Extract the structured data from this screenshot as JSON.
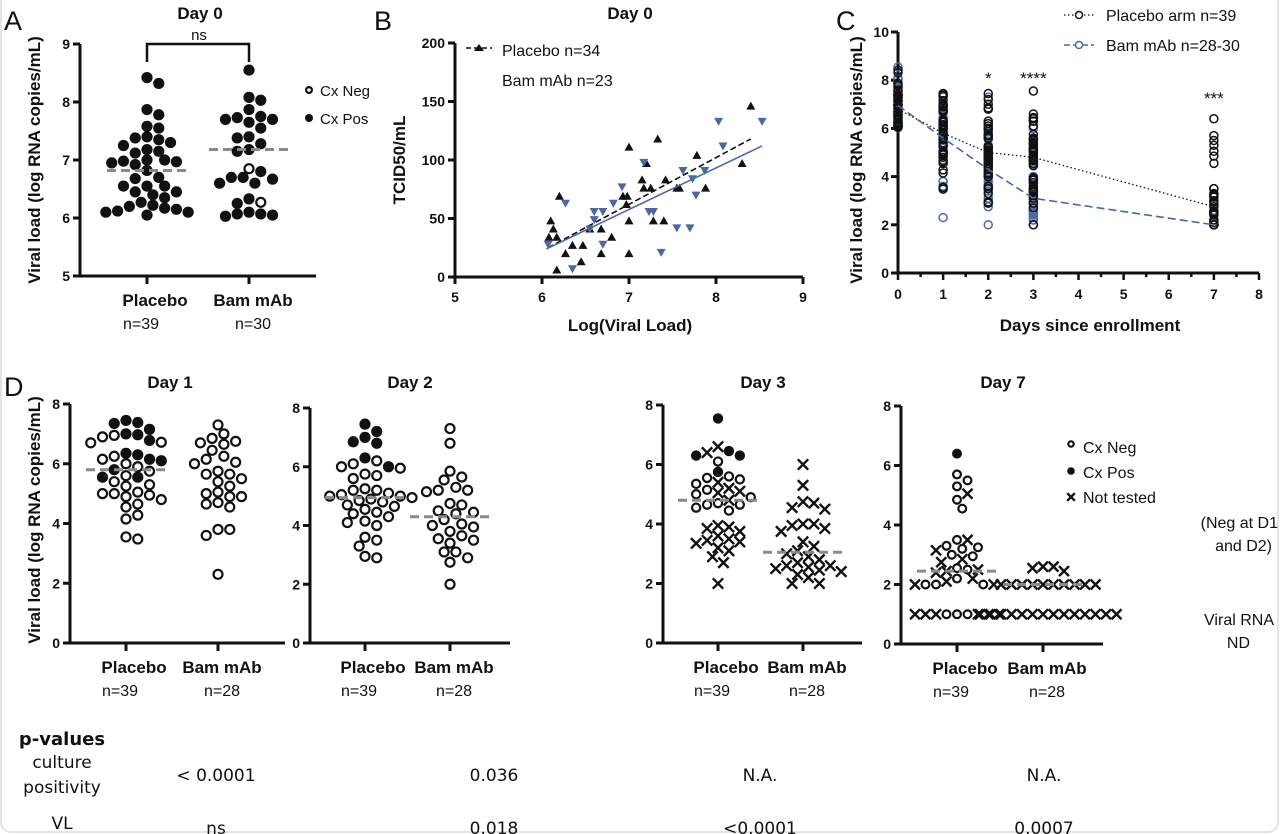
{
  "colors": {
    "ink": "#111111",
    "bam_blue": "#4a67a8",
    "median_gray": "#8a8a8a"
  },
  "chart_data": [
    {
      "panel": "A",
      "type": "scatter",
      "title": "Day 0",
      "ylabel": "Viral load (log RNA copies/mL)",
      "ylim": [
        5,
        9
      ],
      "yticks": [
        5,
        6,
        7,
        8,
        9
      ],
      "significance": "ns",
      "legend": [
        {
          "marker": "open-circle",
          "label": "Cx Neg"
        },
        {
          "marker": "filled-circle",
          "label": "Cx Pos"
        }
      ],
      "groups": [
        {
          "label": "Placebo",
          "n": "n=39",
          "median": 6.82,
          "pos": [
            8.42,
            8.32,
            7.87,
            7.78,
            7.58,
            7.55,
            7.4,
            7.38,
            7.35,
            7.3,
            7.25,
            7.18,
            7.15,
            7.12,
            7.0,
            7.0,
            6.98,
            6.97,
            6.92,
            6.82,
            6.7,
            6.68,
            6.55,
            6.55,
            6.55,
            6.45,
            6.45,
            6.4,
            6.35,
            6.27,
            6.22,
            6.2,
            6.17,
            6.15,
            6.12,
            6.1,
            6.1,
            6.05,
            6.95
          ],
          "neg": [],
          "nt": []
        },
        {
          "label": "Bam mAb",
          "n": "n=30",
          "median": 7.18,
          "pos": [
            8.55,
            8.08,
            8.03,
            7.87,
            7.75,
            7.73,
            7.7,
            7.7,
            7.65,
            7.55,
            7.4,
            7.38,
            7.28,
            7.18,
            7.15,
            6.8,
            6.7,
            6.7,
            6.67,
            6.6,
            6.6,
            6.33,
            6.25,
            6.1,
            6.07,
            6.07,
            6.05,
            6.03
          ],
          "neg": [
            6.85,
            6.27
          ],
          "nt": []
        }
      ]
    },
    {
      "panel": "B",
      "type": "scatter",
      "title": "Day 0",
      "xlabel": "Log(Viral Load)",
      "ylabel": "TCID50/mL",
      "xlim": [
        5,
        9
      ],
      "ylim": [
        0,
        200
      ],
      "xticks": [
        5,
        6,
        7,
        8,
        9
      ],
      "yticks": [
        0,
        50,
        100,
        150,
        200
      ],
      "series": [
        {
          "name": "Placebo n=34",
          "marker": "triangle-up",
          "color": "#111111",
          "fit": [
            [
              6.07,
              25
            ],
            [
              8.4,
              118
            ]
          ],
          "points": [
            [
              6.1,
              48
            ],
            [
              6.13,
              41
            ],
            [
              6.08,
              34
            ],
            [
              6.17,
              34
            ],
            [
              6.2,
              69
            ],
            [
              6.17,
              6
            ],
            [
              6.27,
              20
            ],
            [
              6.35,
              27
            ],
            [
              6.45,
              13
            ],
            [
              6.47,
              27
            ],
            [
              6.55,
              41
            ],
            [
              6.68,
              41
            ],
            [
              6.68,
              20
            ],
            [
              6.8,
              34
            ],
            [
              6.93,
              69
            ],
            [
              6.98,
              69
            ],
            [
              7.0,
              48
            ],
            [
              7.0,
              20
            ],
            [
              7.0,
              111
            ],
            [
              7.15,
              83
            ],
            [
              7.17,
              76
            ],
            [
              7.2,
              97
            ],
            [
              7.25,
              76
            ],
            [
              7.28,
              48
            ],
            [
              7.33,
              118
            ],
            [
              7.4,
              48
            ],
            [
              7.42,
              83
            ],
            [
              7.55,
              76
            ],
            [
              7.58,
              76
            ],
            [
              7.78,
              104
            ],
            [
              7.88,
              76
            ],
            [
              8.3,
              97
            ],
            [
              8.4,
              146
            ],
            [
              6.97,
              62
            ]
          ]
        },
        {
          "name": "Bam mAb n=23",
          "marker": "triangle-down",
          "color": "#4a67a8",
          "fit": [
            [
              6.05,
              24
            ],
            [
              8.53,
              112
            ]
          ],
          "points": [
            [
              6.07,
              28
            ],
            [
              6.27,
              63
            ],
            [
              6.35,
              7
            ],
            [
              6.55,
              41
            ],
            [
              6.6,
              56
            ],
            [
              6.6,
              49
            ],
            [
              6.7,
              56
            ],
            [
              6.7,
              28
            ],
            [
              6.82,
              63
            ],
            [
              6.92,
              77
            ],
            [
              7.17,
              98
            ],
            [
              7.23,
              56
            ],
            [
              7.28,
              56
            ],
            [
              7.37,
              21
            ],
            [
              7.55,
              42
            ],
            [
              7.62,
              91
            ],
            [
              7.7,
              42
            ],
            [
              7.73,
              84
            ],
            [
              7.77,
              70
            ],
            [
              7.87,
              91
            ],
            [
              8.03,
              133
            ],
            [
              8.08,
              112
            ],
            [
              8.53,
              133
            ]
          ]
        }
      ]
    },
    {
      "panel": "C",
      "type": "line",
      "xlabel": "Days since enrollment",
      "ylabel": "Viral load (log RNA copies/mL)",
      "xlim": [
        0,
        8
      ],
      "ylim": [
        0,
        10
      ],
      "xticks": [
        0,
        1,
        2,
        3,
        4,
        5,
        6,
        7,
        8
      ],
      "yticks": [
        0,
        2,
        4,
        6,
        8,
        10
      ],
      "series": [
        {
          "name": "Placebo arm n=39",
          "color": "#111111",
          "style": "dotted",
          "x": [
            0,
            1,
            2,
            3,
            7
          ],
          "y": [
            6.8,
            5.8,
            5.0,
            4.8,
            2.75
          ]
        },
        {
          "name": "Bam mAb n=28-30",
          "color": "#4a67a8",
          "style": "dashed",
          "x": [
            0,
            1,
            2,
            3,
            7
          ],
          "y": [
            6.95,
            5.6,
            4.3,
            3.1,
            2.0
          ]
        }
      ],
      "annotations": [
        {
          "x": 2,
          "label": "*"
        },
        {
          "x": 3,
          "label": "****"
        },
        {
          "x": 7,
          "label": "***"
        }
      ]
    },
    {
      "panel": "D",
      "type": "scatter",
      "title": "Day 1",
      "ylabel": "Viral load (log RNA copies/mL)",
      "ylim": [
        0,
        8
      ],
      "yticks": [
        0,
        2,
        4,
        6,
        8
      ],
      "groups": [
        {
          "label": "Placebo",
          "n": "n=39",
          "median": 5.8,
          "pos": [
            7.45,
            7.38,
            7.35,
            7.15,
            7.0,
            6.97,
            6.78,
            6.35,
            6.3,
            6.15,
            6.1,
            5.8,
            5.55,
            5.55
          ],
          "neg": [
            6.95,
            6.9,
            6.72,
            6.7,
            6.25,
            6.15,
            6.0,
            5.9,
            5.75,
            5.6,
            5.4,
            5.3,
            5.25,
            5.05,
            5.0,
            5.0,
            4.95,
            4.9,
            4.8,
            4.65,
            4.55,
            4.28,
            4.15,
            3.55,
            3.48
          ],
          "nt": []
        },
        {
          "label": "Bam mAb",
          "n": "n=28",
          "pos": [],
          "neg": [
            7.3,
            7.0,
            6.85,
            6.75,
            6.7,
            6.65,
            6.45,
            6.25,
            6.15,
            6.05,
            6.0,
            5.75,
            5.65,
            5.65,
            5.5,
            5.4,
            5.25,
            5.05,
            5.0,
            4.9,
            4.9,
            4.7,
            4.65,
            4.55,
            3.8,
            3.8,
            3.6,
            2.3
          ],
          "nt": []
        }
      ]
    },
    {
      "panel": "D",
      "type": "scatter",
      "title": "Day 2",
      "ylim": [
        0,
        8
      ],
      "yticks": [
        0,
        2,
        4,
        6,
        8
      ],
      "groups": [
        {
          "label": "Placebo",
          "n": "n=39",
          "median": 4.95,
          "pos": [
            7.45,
            7.2,
            7.0,
            6.85,
            6.8,
            6.3,
            6.0
          ],
          "neg": [
            6.2,
            6.1,
            6.0,
            5.95,
            5.75,
            5.7,
            5.6,
            5.25,
            5.2,
            5.2,
            5.1,
            5.05,
            5.0,
            5.0,
            4.95,
            4.9,
            4.85,
            4.8,
            4.7,
            4.65,
            4.55,
            4.45,
            4.4,
            4.3,
            4.15,
            4.1,
            4.0,
            3.6,
            3.5,
            3.3,
            2.95,
            2.9
          ],
          "nt": []
        },
        {
          "label": "Bam mAb",
          "n": "n=28",
          "median": 4.3,
          "pos": [],
          "neg": [
            7.3,
            6.8,
            5.85,
            5.65,
            5.55,
            5.3,
            5.2,
            5.2,
            5.15,
            4.75,
            4.7,
            4.5,
            4.45,
            4.4,
            4.2,
            4.05,
            4.0,
            3.95,
            3.8,
            3.65,
            3.55,
            3.5,
            3.4,
            3.1,
            3.1,
            2.9,
            2.75,
            2.0
          ],
          "nt": []
        }
      ]
    },
    {
      "panel": "D",
      "type": "scatter",
      "title": "Day 3",
      "ylim": [
        0,
        8
      ],
      "yticks": [
        0,
        2,
        4,
        6,
        8
      ],
      "groups": [
        {
          "label": "Placebo",
          "n": "n=39",
          "median": 4.8,
          "pos": [
            7.55,
            6.45,
            6.3,
            6.3,
            5.75
          ],
          "neg": [
            6.1,
            5.6,
            5.55,
            5.5,
            5.35,
            5.15,
            5.0,
            4.9,
            4.7,
            4.65,
            4.65,
            4.55,
            4.45
          ],
          "nt": [
            6.6,
            6.4,
            5.4,
            5.2,
            5.1,
            5.05,
            4.8,
            3.95,
            3.9,
            3.85,
            3.75,
            3.6,
            3.5,
            3.45,
            3.4,
            3.35,
            3.2,
            3.1,
            2.9,
            2.7,
            2.0
          ]
        },
        {
          "label": "Bam mAb",
          "n": "n=28",
          "median": 3.05,
          "pos": [],
          "neg": [],
          "nt": [
            6.0,
            5.3,
            4.75,
            4.7,
            4.55,
            4.5,
            4.0,
            4.0,
            3.95,
            3.85,
            3.75,
            3.4,
            3.25,
            3.1,
            3.0,
            2.9,
            2.8,
            2.7,
            2.6,
            2.6,
            2.55,
            2.5,
            2.45,
            2.4,
            2.3,
            2.2,
            2.0,
            2.0
          ]
        }
      ]
    },
    {
      "panel": "D",
      "type": "scatter",
      "title": "Day 7",
      "ylim": [
        0,
        8
      ],
      "yticks": [
        0,
        2,
        4,
        6,
        8
      ],
      "legend": [
        {
          "marker": "open-circle",
          "label": "Cx Neg"
        },
        {
          "marker": "filled-circle",
          "label": "Cx Pos"
        },
        {
          "marker": "x",
          "label": "Not tested",
          "note": [
            "(Neg at D1",
            "and D2)"
          ]
        }
      ],
      "nd_label": [
        "Viral RNA",
        "ND"
      ],
      "groups": [
        {
          "label": "Placebo",
          "n": "n=39",
          "median": 2.45,
          "pos": [
            6.4
          ],
          "neg": [
            5.7,
            5.5,
            4.85,
            4.55,
            3.5,
            3.3,
            3.25,
            3.2,
            3.0,
            2.95,
            2.55,
            2.5,
            2.2,
            2.0,
            2.0,
            2.0,
            1.0,
            1.0,
            1.0,
            5.3
          ],
          "nt": [
            5.05,
            3.5,
            3.15,
            2.85,
            2.75,
            2.5,
            2.45,
            2.4,
            2.2,
            2.1,
            2.0,
            2.0,
            1.0,
            1.0,
            1.0,
            1.0,
            1.0,
            1.0
          ]
        },
        {
          "label": "Bam mAb",
          "n": "n=28",
          "median": 2.0,
          "pos": [],
          "neg": [],
          "nt": [
            2.6,
            2.6,
            2.55,
            2.45,
            2.0,
            2.0,
            2.0,
            2.0,
            2.0,
            2.0,
            2.0,
            2.0,
            2.0,
            2.0,
            1.0,
            1.0,
            1.0,
            1.0,
            1.0,
            1.0,
            1.0,
            1.0,
            1.0,
            1.0,
            1.0,
            1.0,
            1.0,
            1.0
          ]
        }
      ]
    }
  ],
  "pvalues": {
    "heading": "p-values",
    "rows": [
      {
        "label": [
          "culture",
          "positivity"
        ],
        "values": [
          "< 0.0001",
          "0.036",
          "N.A.",
          "N.A."
        ]
      },
      {
        "label": [
          "VL"
        ],
        "values": [
          "ns",
          "0.018",
          "<0.0001",
          "0.0007"
        ]
      }
    ]
  }
}
